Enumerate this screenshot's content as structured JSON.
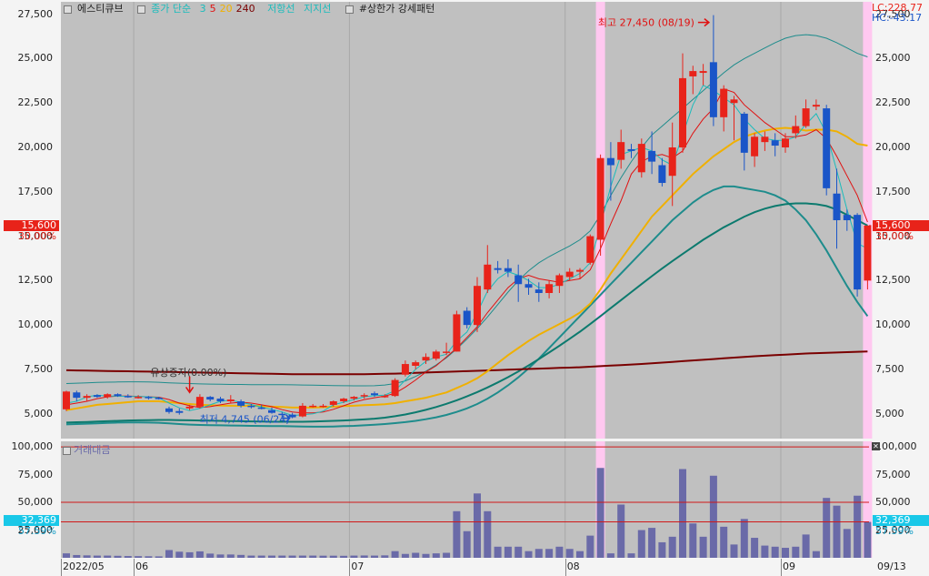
{
  "legend": {
    "stock_name": "에스티큐브",
    "ma_label": "종가 단순",
    "ma_periods": [
      {
        "label": "3",
        "color": "#19bcbc"
      },
      {
        "label": "5",
        "color": "#e01010"
      },
      {
        "label": "20",
        "color": "#f0b000"
      },
      {
        "label": "240",
        "color": "#7a0000"
      }
    ],
    "resistance_label": "저항선",
    "support_label": "지지선",
    "pattern_label": "#상한가 강세패턴"
  },
  "price_axis": {
    "ticks": [
      "27,500",
      "25,000",
      "22,500",
      "20,000",
      "17,500",
      "15,000",
      "12,500",
      "10,000",
      "7,500",
      "5,000"
    ],
    "min": 3600,
    "max": 28200
  },
  "volume_axis": {
    "ticks": [
      "100,000",
      "75,000",
      "50,000",
      "25,000"
    ],
    "max": 105000
  },
  "indicators": {
    "lc": "LC:228.77",
    "hc": "HC:-43.17"
  },
  "current": {
    "price": "15,600",
    "change_pct": "30.00%",
    "volume": "32,369",
    "volume_pct": "57.59%"
  },
  "annotations": {
    "high": "최고 27,450 (08/19)",
    "low": "최저 4,745 (06/24)",
    "capital_increase": "유상증자(0.00%)"
  },
  "volume_title": "거래대금",
  "date_axis": {
    "labels": [
      {
        "text": "2022/05",
        "index": 0
      },
      {
        "text": "06",
        "index": 7
      },
      {
        "text": "07",
        "index": 28
      },
      {
        "text": "08",
        "index": 49
      },
      {
        "text": "09",
        "index": 70
      }
    ],
    "right_label": "09/13"
  },
  "colors": {
    "up": "#e8231a",
    "down": "#1a55c8",
    "volume": "#6a6aa8",
    "highlight": "#ffc8f0",
    "bg": "#c0c0c0"
  },
  "chart_data": {
    "type": "candlestick",
    "highlight_indices": [
      52,
      78
    ],
    "candles": [
      {
        "o": 5250,
        "h": 6300,
        "l": 5150,
        "c": 6250,
        "v": 4000
      },
      {
        "o": 6200,
        "h": 6300,
        "l": 5700,
        "c": 5900,
        "v": 2500
      },
      {
        "o": 5900,
        "h": 6100,
        "l": 5700,
        "c": 6000,
        "v": 2200
      },
      {
        "o": 6050,
        "h": 6100,
        "l": 5900,
        "c": 5950,
        "v": 2000
      },
      {
        "o": 5950,
        "h": 6150,
        "l": 5850,
        "c": 6100,
        "v": 2000
      },
      {
        "o": 6100,
        "h": 6150,
        "l": 5950,
        "c": 6000,
        "v": 1800
      },
      {
        "o": 6000,
        "h": 6100,
        "l": 5900,
        "c": 5950,
        "v": 1600
      },
      {
        "o": 5950,
        "h": 6050,
        "l": 5850,
        "c": 5950,
        "v": 1500
      },
      {
        "o": 5950,
        "h": 6000,
        "l": 5800,
        "c": 5900,
        "v": 1400
      },
      {
        "o": 5900,
        "h": 5950,
        "l": 5800,
        "c": 5850,
        "v": 1300
      },
      {
        "o": 5300,
        "h": 5400,
        "l": 5000,
        "c": 5100,
        "v": 7000
      },
      {
        "o": 5150,
        "h": 5300,
        "l": 4950,
        "c": 5050,
        "v": 5500
      },
      {
        "o": 5300,
        "h": 5500,
        "l": 5200,
        "c": 5400,
        "v": 5000
      },
      {
        "o": 5400,
        "h": 6100,
        "l": 5300,
        "c": 5950,
        "v": 5800
      },
      {
        "o": 5950,
        "h": 6000,
        "l": 5700,
        "c": 5800,
        "v": 3800
      },
      {
        "o": 5850,
        "h": 5950,
        "l": 5600,
        "c": 5700,
        "v": 3000
      },
      {
        "o": 5700,
        "h": 6050,
        "l": 5600,
        "c": 5800,
        "v": 3000
      },
      {
        "o": 5700,
        "h": 5800,
        "l": 5350,
        "c": 5450,
        "v": 2600
      },
      {
        "o": 5450,
        "h": 5550,
        "l": 5300,
        "c": 5400,
        "v": 2000
      },
      {
        "o": 5350,
        "h": 5500,
        "l": 5250,
        "c": 5300,
        "v": 2000
      },
      {
        "o": 5200,
        "h": 5350,
        "l": 5000,
        "c": 5050,
        "v": 2000
      },
      {
        "o": 5000,
        "h": 5100,
        "l": 4800,
        "c": 4950,
        "v": 2000
      },
      {
        "o": 4950,
        "h": 5050,
        "l": 4745,
        "c": 4800,
        "v": 2000
      },
      {
        "o": 4850,
        "h": 5600,
        "l": 4800,
        "c": 5450,
        "v": 2000
      },
      {
        "o": 5450,
        "h": 5550,
        "l": 5350,
        "c": 5450,
        "v": 2000
      },
      {
        "o": 5450,
        "h": 5550,
        "l": 5350,
        "c": 5450,
        "v": 1900
      },
      {
        "o": 5500,
        "h": 5750,
        "l": 5400,
        "c": 5700,
        "v": 1900
      },
      {
        "o": 5700,
        "h": 5900,
        "l": 5600,
        "c": 5850,
        "v": 1800
      },
      {
        "o": 5850,
        "h": 6000,
        "l": 5750,
        "c": 5950,
        "v": 2000
      },
      {
        "o": 6000,
        "h": 6150,
        "l": 5850,
        "c": 6050,
        "v": 2100
      },
      {
        "o": 6150,
        "h": 6250,
        "l": 5950,
        "c": 6050,
        "v": 2000
      },
      {
        "o": 6000,
        "h": 6100,
        "l": 5900,
        "c": 6000,
        "v": 2200
      },
      {
        "o": 6000,
        "h": 7000,
        "l": 5950,
        "c": 6900,
        "v": 6000
      },
      {
        "o": 7200,
        "h": 8000,
        "l": 7100,
        "c": 7800,
        "v": 3500
      },
      {
        "o": 7700,
        "h": 8000,
        "l": 7500,
        "c": 7900,
        "v": 4500
      },
      {
        "o": 8000,
        "h": 8400,
        "l": 7800,
        "c": 8200,
        "v": 3500
      },
      {
        "o": 8100,
        "h": 8600,
        "l": 8000,
        "c": 8500,
        "v": 4000
      },
      {
        "o": 8450,
        "h": 9000,
        "l": 8300,
        "c": 8500,
        "v": 4500
      },
      {
        "o": 8500,
        "h": 10800,
        "l": 8500,
        "c": 10600,
        "v": 42000
      },
      {
        "o": 10800,
        "h": 11000,
        "l": 9800,
        "c": 10000,
        "v": 24000
      },
      {
        "o": 10000,
        "h": 12700,
        "l": 9600,
        "c": 12200,
        "v": 58000
      },
      {
        "o": 12000,
        "h": 14500,
        "l": 11800,
        "c": 13400,
        "v": 42000
      },
      {
        "o": 13200,
        "h": 13600,
        "l": 12900,
        "c": 13100,
        "v": 10000
      },
      {
        "o": 13200,
        "h": 13700,
        "l": 12700,
        "c": 13000,
        "v": 10000
      },
      {
        "o": 12800,
        "h": 13400,
        "l": 11300,
        "c": 12300,
        "v": 10000
      },
      {
        "o": 12300,
        "h": 12600,
        "l": 11700,
        "c": 12100,
        "v": 6000
      },
      {
        "o": 12000,
        "h": 12400,
        "l": 11300,
        "c": 11800,
        "v": 8000
      },
      {
        "o": 11800,
        "h": 12500,
        "l": 11500,
        "c": 12300,
        "v": 8000
      },
      {
        "o": 12200,
        "h": 12900,
        "l": 11800,
        "c": 12800,
        "v": 10000
      },
      {
        "o": 12700,
        "h": 13200,
        "l": 12500,
        "c": 13000,
        "v": 8000
      },
      {
        "o": 13000,
        "h": 13200,
        "l": 12600,
        "c": 13100,
        "v": 6000
      },
      {
        "o": 13500,
        "h": 15100,
        "l": 13400,
        "c": 15000,
        "v": 20000
      },
      {
        "o": 14800,
        "h": 19600,
        "l": 13900,
        "c": 19400,
        "v": 81000
      },
      {
        "o": 19400,
        "h": 20300,
        "l": 17000,
        "c": 19000,
        "v": 4000
      },
      {
        "o": 19300,
        "h": 21000,
        "l": 18800,
        "c": 20300,
        "v": 48000
      },
      {
        "o": 19900,
        "h": 20200,
        "l": 19400,
        "c": 19800,
        "v": 4000
      },
      {
        "o": 18600,
        "h": 20500,
        "l": 18300,
        "c": 20200,
        "v": 25000
      },
      {
        "o": 19800,
        "h": 20900,
        "l": 18500,
        "c": 19200,
        "v": 27000
      },
      {
        "o": 19000,
        "h": 19400,
        "l": 17800,
        "c": 18000,
        "v": 14000
      },
      {
        "o": 18400,
        "h": 21400,
        "l": 16700,
        "c": 20000,
        "v": 19000
      },
      {
        "o": 20000,
        "h": 25300,
        "l": 19700,
        "c": 23900,
        "v": 80000
      },
      {
        "o": 24000,
        "h": 24600,
        "l": 23000,
        "c": 24300,
        "v": 31000
      },
      {
        "o": 24200,
        "h": 24700,
        "l": 23500,
        "c": 24300,
        "v": 19000
      },
      {
        "o": 24800,
        "h": 27450,
        "l": 21200,
        "c": 21700,
        "v": 74000
      },
      {
        "o": 21700,
        "h": 23500,
        "l": 20900,
        "c": 23300,
        "v": 28000
      },
      {
        "o": 22500,
        "h": 22900,
        "l": 20400,
        "c": 22700,
        "v": 12000
      },
      {
        "o": 21900,
        "h": 22000,
        "l": 18700,
        "c": 19700,
        "v": 35000
      },
      {
        "o": 19500,
        "h": 20800,
        "l": 18900,
        "c": 20600,
        "v": 18000
      },
      {
        "o": 20300,
        "h": 20900,
        "l": 19800,
        "c": 20600,
        "v": 11000
      },
      {
        "o": 20400,
        "h": 20800,
        "l": 19500,
        "c": 20100,
        "v": 10000
      },
      {
        "o": 20000,
        "h": 20800,
        "l": 19700,
        "c": 20500,
        "v": 9000
      },
      {
        "o": 20800,
        "h": 21800,
        "l": 20500,
        "c": 21200,
        "v": 10000
      },
      {
        "o": 21200,
        "h": 22700,
        "l": 21100,
        "c": 22200,
        "v": 21000
      },
      {
        "o": 22300,
        "h": 22700,
        "l": 22100,
        "c": 22400,
        "v": 6000
      },
      {
        "o": 22200,
        "h": 22400,
        "l": 17300,
        "c": 17700,
        "v": 54000
      },
      {
        "o": 17400,
        "h": 18800,
        "l": 14300,
        "c": 15900,
        "v": 47000
      },
      {
        "o": 16200,
        "h": 16500,
        "l": 15300,
        "c": 15900,
        "v": 26000
      },
      {
        "o": 16200,
        "h": 16300,
        "l": 11600,
        "c": 12000,
        "v": 56000
      },
      {
        "o": 12500,
        "h": 15600,
        "l": 12000,
        "c": 15600,
        "v": 32369
      }
    ],
    "ma3": [
      5600,
      5700,
      5950,
      6050,
      6000,
      6000,
      5980,
      5970,
      5950,
      5900,
      5600,
      5330,
      5180,
      5300,
      5500,
      5700,
      5770,
      5640,
      5520,
      5370,
      5250,
      5100,
      4900,
      4950,
      5000,
      5150,
      5500,
      5650,
      5800,
      5950,
      6020,
      6050,
      6300,
      6900,
      7500,
      7950,
      8200,
      8350,
      9100,
      9600,
      10700,
      11900,
      12600,
      13000,
      12800,
      12500,
      12100,
      12100,
      12300,
      12600,
      12900,
      13500,
      15600,
      17800,
      19600,
      19800,
      20000,
      19800,
      19300,
      19000,
      20700,
      22400,
      23500,
      23200,
      22800,
      22400,
      21600,
      21000,
      20500,
      20400,
      20400,
      20600,
      21300,
      21900,
      20800,
      18700,
      16500,
      14600,
      14300
    ],
    "ma5": [
      5500,
      5600,
      5700,
      5850,
      5950,
      6000,
      6000,
      5980,
      5950,
      5930,
      5800,
      5600,
      5450,
      5350,
      5400,
      5500,
      5600,
      5650,
      5600,
      5500,
      5400,
      5230,
      5100,
      5050,
      5050,
      5100,
      5250,
      5450,
      5650,
      5800,
      5900,
      6000,
      6150,
      6500,
      6900,
      7350,
      7700,
      8200,
      8700,
      9300,
      9900,
      10700,
      11400,
      12100,
      12600,
      12800,
      12600,
      12500,
      12400,
      12500,
      12600,
      13100,
      14300,
      15700,
      17000,
      18500,
      19200,
      19500,
      19600,
      19400,
      19800,
      20800,
      21600,
      22200,
      23300,
      23100,
      22400,
      21900,
      21400,
      21000,
      20600,
      20600,
      20700,
      21000,
      20500,
      19500,
      18400,
      17300,
      15800
    ],
    "ma20": [
      5200,
      5300,
      5400,
      5500,
      5550,
      5600,
      5650,
      5700,
      5700,
      5700,
      5650,
      5600,
      5550,
      5500,
      5480,
      5460,
      5450,
      5450,
      5450,
      5430,
      5400,
      5380,
      5350,
      5350,
      5350,
      5370,
      5400,
      5430,
      5450,
      5480,
      5500,
      5530,
      5600,
      5700,
      5800,
      5900,
      6050,
      6200,
      6450,
      6700,
      7000,
      7400,
      7850,
      8300,
      8700,
      9100,
      9450,
      9750,
      10050,
      10350,
      10700,
      11200,
      12000,
      12900,
      13700,
      14500,
      15300,
      16100,
      16700,
      17300,
      17900,
      18500,
      19000,
      19500,
      19900,
      20300,
      20600,
      20800,
      20950,
      21050,
      21100,
      21050,
      20950,
      21000,
      21000,
      20900,
      20600,
      20200,
      20100
    ],
    "ma60": [
      4500,
      4520,
      4540,
      4560,
      4580,
      4600,
      4620,
      4630,
      4640,
      4650,
      4650,
      4640,
      4630,
      4620,
      4610,
      4600,
      4590,
      4580,
      4570,
      4560,
      4550,
      4550,
      4550,
      4550,
      4560,
      4580,
      4600,
      4620,
      4650,
      4680,
      4720,
      4780,
      4860,
      4960,
      5080,
      5220,
      5380,
      5560,
      5760,
      5980,
      6220,
      6480,
      6760,
      7060,
      7380,
      7720,
      8080,
      8450,
      8830,
      9220,
      9620,
      10050,
      10500,
      10950,
      11400,
      11850,
      12300,
      12750,
      13180,
      13600,
      14000,
      14400,
      14800,
      15150,
      15500,
      15800,
      16100,
      16350,
      16550,
      16700,
      16800,
      16850,
      16850,
      16800,
      16700,
      16500,
      16200,
      15900,
      15600
    ],
    "ma240": [
      7450,
      7440,
      7430,
      7420,
      7410,
      7400,
      7390,
      7380,
      7370,
      7360,
      7350,
      7340,
      7330,
      7320,
      7310,
      7300,
      7290,
      7280,
      7270,
      7260,
      7250,
      7240,
      7230,
      7230,
      7230,
      7230,
      7230,
      7230,
      7230,
      7230,
      7240,
      7250,
      7260,
      7280,
      7300,
      7320,
      7340,
      7360,
      7380,
      7400,
      7420,
      7440,
      7460,
      7480,
      7500,
      7520,
      7540,
      7560,
      7580,
      7600,
      7620,
      7650,
      7680,
      7710,
      7740,
      7770,
      7800,
      7840,
      7880,
      7920,
      7960,
      8000,
      8040,
      8080,
      8120,
      8160,
      8200,
      8240,
      8270,
      8300,
      8330,
      8360,
      8390,
      8410,
      8430,
      8450,
      8470,
      8490,
      8510
    ],
    "bb_upper": [
      6700,
      6720,
      6740,
      6760,
      6780,
      6790,
      6800,
      6800,
      6790,
      6770,
      6740,
      6720,
      6700,
      6680,
      6670,
      6660,
      6650,
      6650,
      6640,
      6640,
      6640,
      6640,
      6630,
      6620,
      6610,
      6600,
      6590,
      6580,
      6570,
      6570,
      6580,
      6620,
      6700,
      6850,
      7100,
      7400,
      7750,
      8150,
      8650,
      9200,
      9800,
      10450,
      11150,
      11850,
      12500,
      13050,
      13500,
      13850,
      14150,
      14450,
      14800,
      15300,
      16200,
      17300,
      18300,
      19200,
      20000,
      20700,
      21200,
      21700,
      22200,
      22700,
      23200,
      23700,
      24200,
      24650,
      25000,
      25300,
      25600,
      25900,
      26150,
      26300,
      26350,
      26300,
      26150,
      25900,
      25600,
      25300,
      25100
    ],
    "bb_lower": [
      4400,
      4420,
      4440,
      4460,
      4480,
      4500,
      4510,
      4510,
      4500,
      4490,
      4460,
      4420,
      4390,
      4370,
      4360,
      4350,
      4340,
      4330,
      4320,
      4310,
      4300,
      4300,
      4290,
      4280,
      4270,
      4270,
      4280,
      4300,
      4320,
      4350,
      4380,
      4420,
      4470,
      4530,
      4600,
      4690,
      4800,
      4930,
      5100,
      5300,
      5550,
      5850,
      6200,
      6600,
      7050,
      7550,
      8100,
      8700,
      9300,
      9900,
      10500,
      11100,
      11700,
      12300,
      12900,
      13500,
      14100,
      14700,
      15300,
      15900,
      16400,
      16900,
      17300,
      17600,
      17800,
      17800,
      17700,
      17600,
      17500,
      17300,
      17000,
      16500,
      15900,
      15100,
      14200,
      13200,
      12200,
      11300,
      10500
    ]
  }
}
